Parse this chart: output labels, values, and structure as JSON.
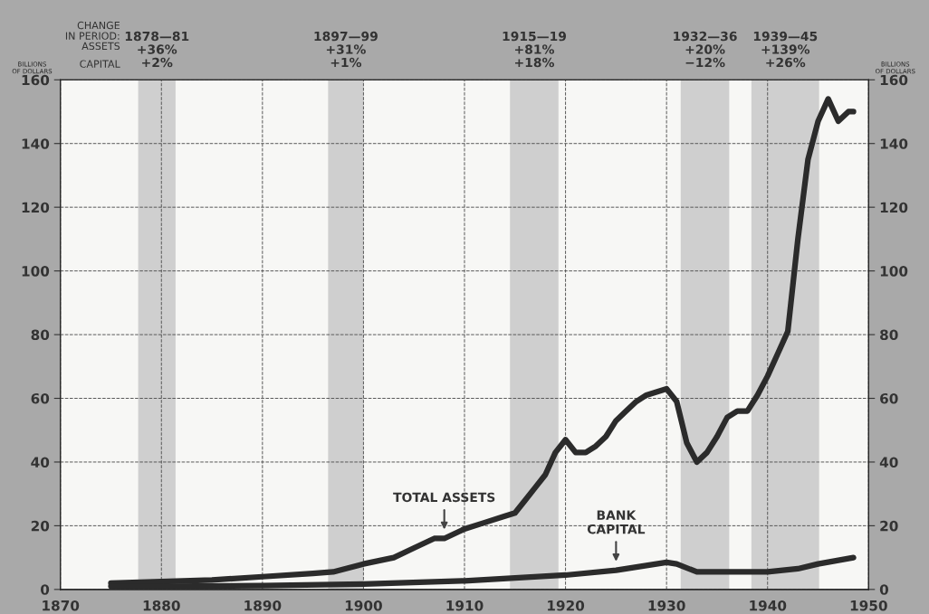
{
  "chart_data": {
    "type": "line",
    "ylabel": "BILLIONS OF DOLLARS",
    "y2label": "BILLIONS OF DOLLARS",
    "xlim": [
      1870,
      1950
    ],
    "xticks": [
      1870,
      1880,
      1890,
      1900,
      1910,
      1920,
      1930,
      1940,
      1950
    ],
    "ylim": [
      0,
      160
    ],
    "yticks": [
      0,
      20,
      40,
      60,
      80,
      100,
      120,
      140,
      160
    ],
    "y2lim": [
      0,
      160
    ],
    "y2ticks": [
      0,
      20,
      40,
      60,
      80,
      100,
      120,
      140,
      160
    ],
    "grid": true,
    "line_style": "solid",
    "marker": "none",
    "series": [
      {
        "color": "#2b2b2b",
        "x": [
          1875,
          1880,
          1885,
          1890,
          1895,
          1897,
          1900,
          1903,
          1905,
          1907,
          1908,
          1910,
          1912,
          1914,
          1915,
          1916,
          1917,
          1918,
          1919,
          1920,
          1921,
          1922,
          1923,
          1924,
          1925,
          1926,
          1927,
          1928,
          1929,
          1930,
          1931,
          1932,
          1933,
          1934,
          1935,
          1936,
          1937,
          1938,
          1939,
          1940,
          1941,
          1942,
          1943,
          1944,
          1945,
          1946,
          1947,
          1948,
          1948.5
        ],
        "values": [
          2,
          2.5,
          3,
          4,
          5,
          5.5,
          8,
          10,
          13,
          16,
          16,
          19,
          21,
          23,
          24,
          28,
          32,
          36,
          43,
          47,
          43,
          43,
          45,
          48,
          53,
          56,
          59,
          61,
          62,
          63,
          59,
          46,
          40,
          43,
          48,
          54,
          56,
          56,
          61,
          67,
          74,
          81,
          110,
          135,
          147,
          154,
          147,
          150,
          150
        ]
      },
      {
        "color": "#2b2b2b",
        "x": [
          1875,
          1880,
          1890,
          1900,
          1910,
          1920,
          1925,
          1930,
          1931,
          1933,
          1935,
          1940,
          1943,
          1945,
          1948.5
        ],
        "values": [
          1,
          1,
          1.2,
          1.7,
          2.7,
          4.5,
          6,
          8.5,
          8,
          5.5,
          5.5,
          5.5,
          6.5,
          8,
          10
        ]
      }
    ],
    "bands": [
      {
        "axis": "x",
        "from": 1877.7,
        "to": 1881.4,
        "label": "1878—81\n+36%\n+2%",
        "color": "#cfcfcf"
      },
      {
        "axis": "x",
        "from": 1896.5,
        "to": 1900,
        "label": "1897—99\n+31%\n+1%",
        "color": "#cfcfcf"
      },
      {
        "axis": "x",
        "from": 1914.5,
        "to": 1919.3,
        "label": "1915—19\n+81%\n+18%",
        "color": "#cfcfcf"
      },
      {
        "axis": "x",
        "from": 1931.4,
        "to": 1936.2,
        "label": "1932—36\n+20%\n−12%",
        "color": "#cfcfcf"
      },
      {
        "axis": "x",
        "from": 1938.4,
        "to": 1945.1,
        "label": "1939—45\n+139%\n+26%",
        "color": "#cfcfcf"
      }
    ],
    "annotations": [
      "CHANGE\nIN PERIOD:",
      "ASSETS",
      "CAPITAL",
      {
        "text": "TOTAL ASSETS",
        "x": 1908,
        "y": 16
      },
      {
        "text": "BANK\nCAPITAL",
        "x": 1925,
        "y": 6
      }
    ]
  }
}
